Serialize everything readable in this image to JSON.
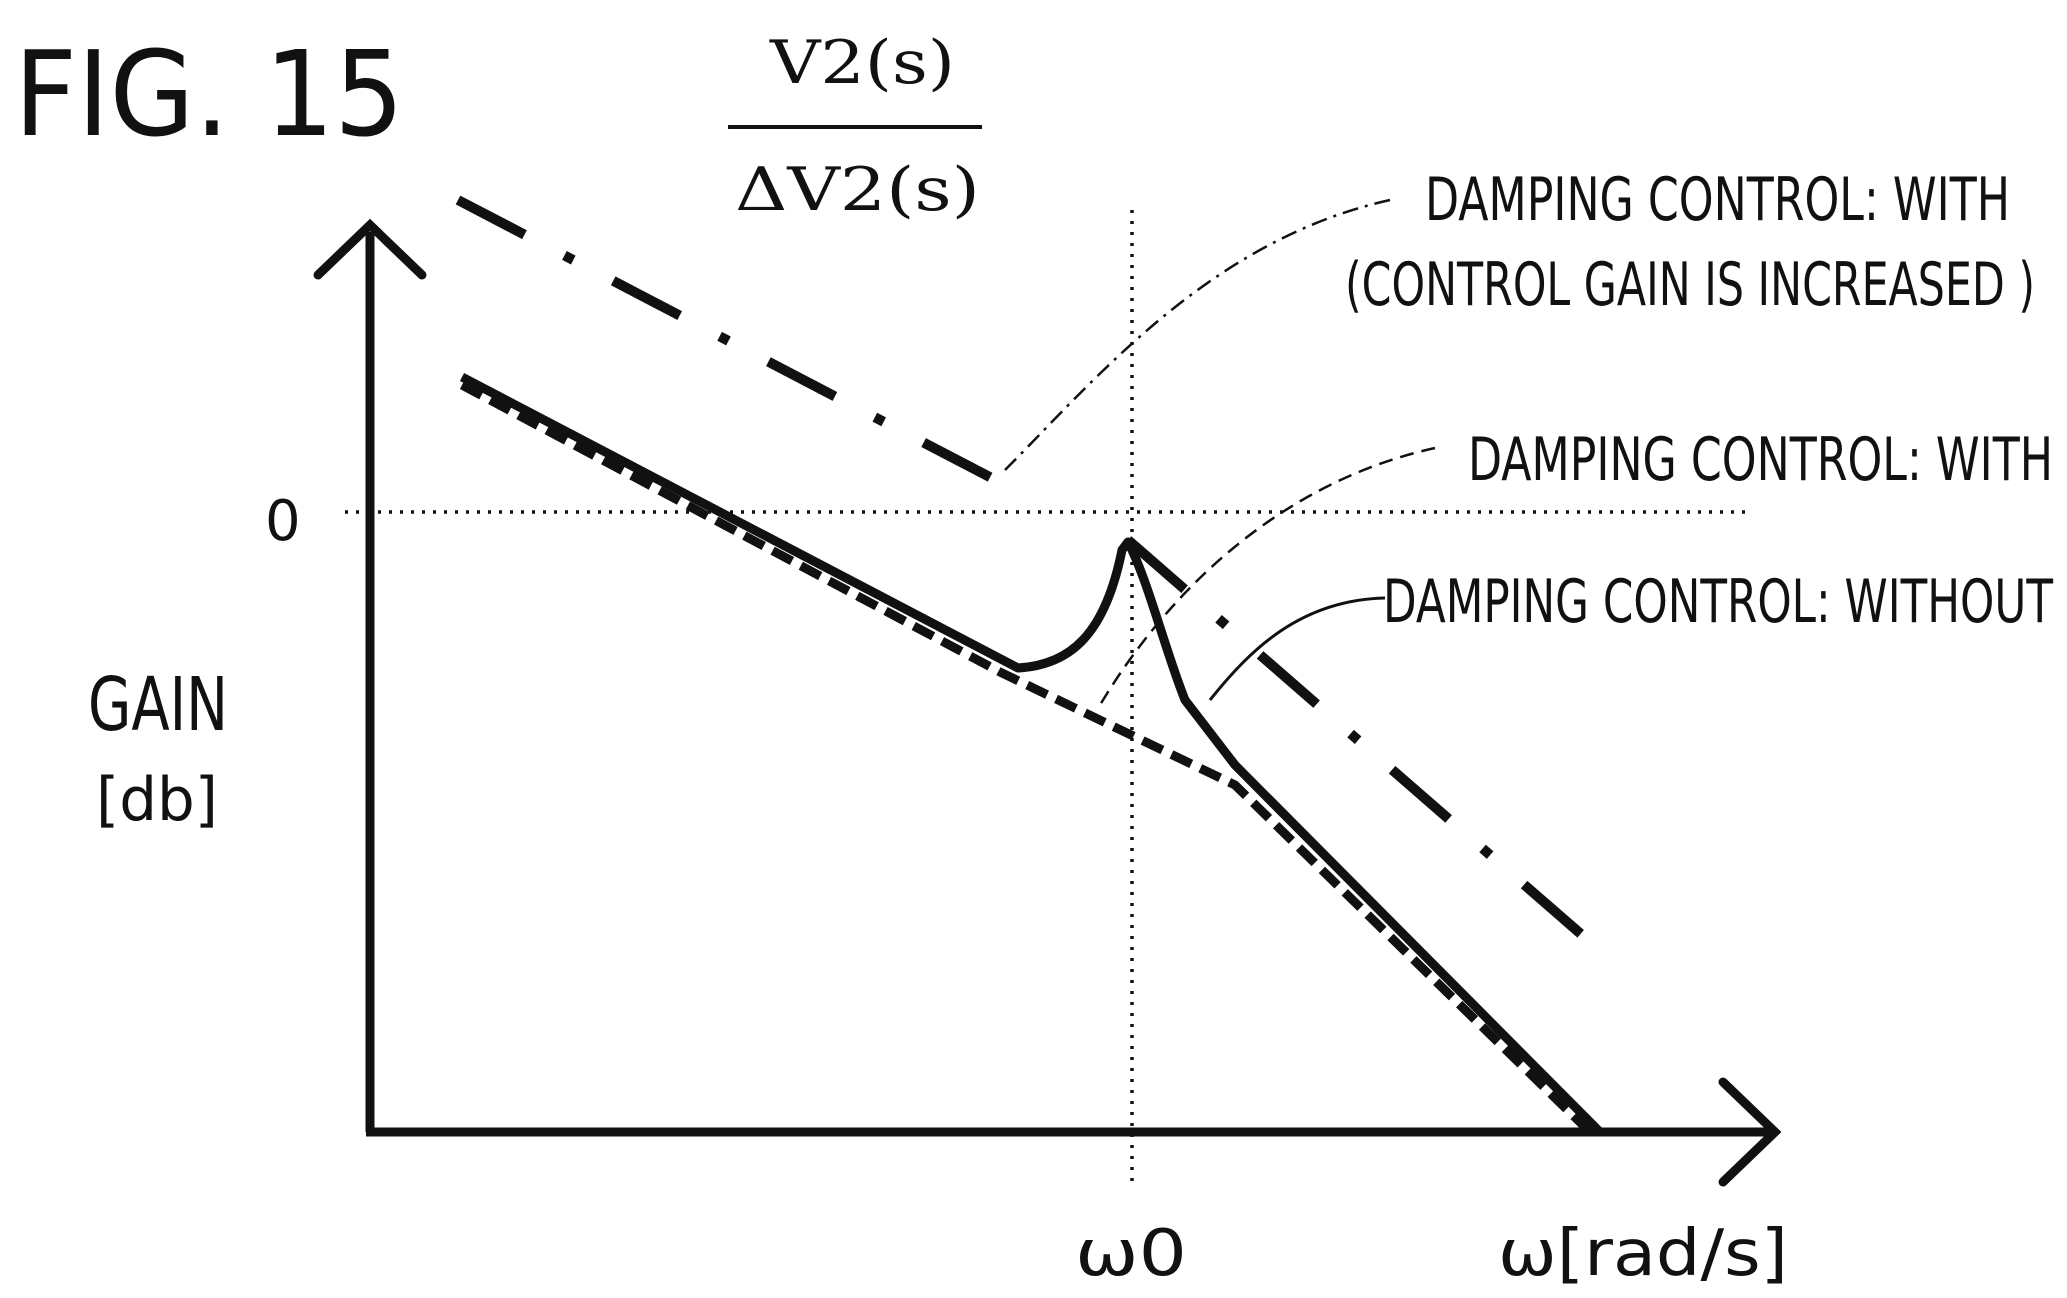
{
  "figure": {
    "title": "FIG. 15",
    "fraction": {
      "numerator": "V2(s)",
      "denominator": "ΔV2(s)"
    }
  },
  "axes": {
    "y_label": "GAIN",
    "y_unit": "[db]",
    "y_zero": "0",
    "x_mark": "ω0",
    "x_label": "ω[rad/s]"
  },
  "legend": {
    "with_increased_line1": "DAMPING CONTROL: WITH",
    "with_increased_line2": "(CONTROL GAIN IS INCREASED )",
    "with": "DAMPING CONTROL: WITH",
    "without": "DAMPING CONTROL: WITHOUT"
  },
  "colors": {
    "ink": "#111111",
    "background": "#ffffff"
  }
}
